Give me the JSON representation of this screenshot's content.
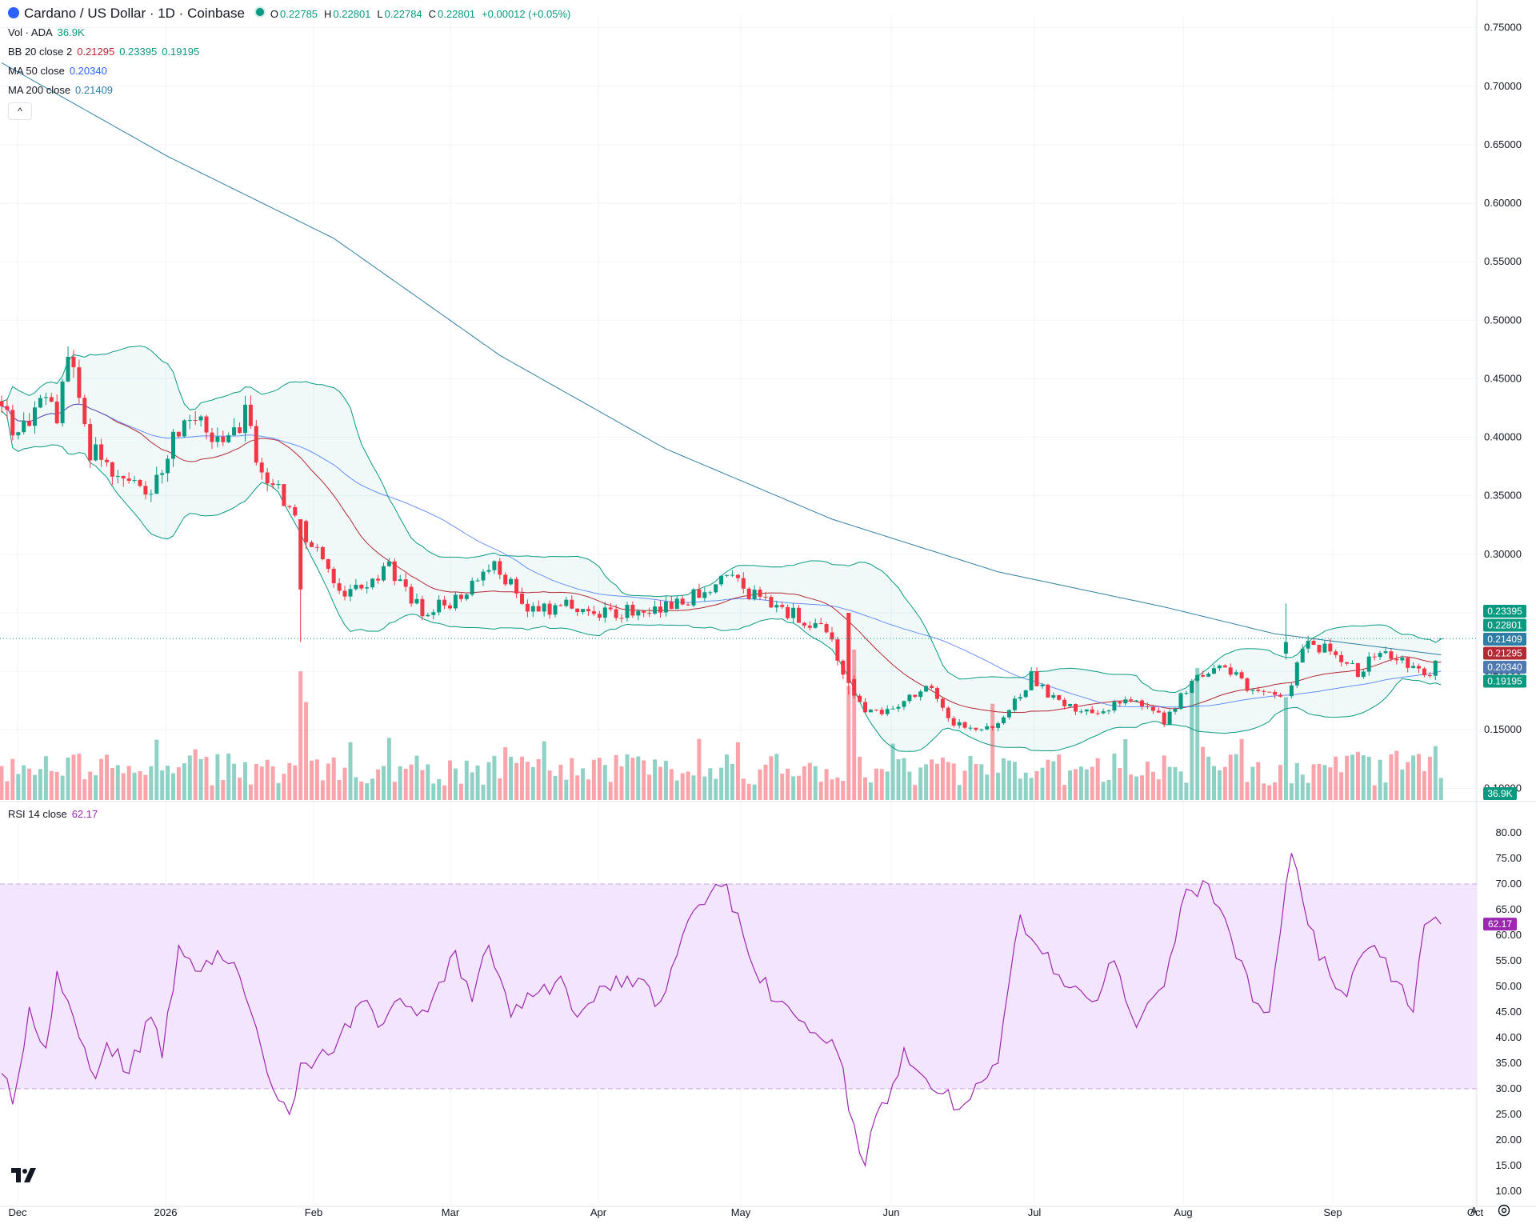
{
  "header": {
    "title": "Cardano / US Dollar · 1D · Coinbase",
    "ohlc": [
      {
        "label": "O",
        "value": "0.22785"
      },
      {
        "label": "H",
        "value": "0.22801"
      },
      {
        "label": "L",
        "value": "0.22784"
      },
      {
        "label": "C",
        "value": "0.22801"
      }
    ],
    "change": "+0.00012 (+0.05%)"
  },
  "indicators": {
    "vol": {
      "label": "Vol · ADA",
      "value": "36.9K"
    },
    "bb": {
      "label": "BB 20 close 2",
      "values": [
        "0.21295",
        "0.23395",
        "0.19195"
      ]
    },
    "ma50": {
      "label": "MA 50 close",
      "value": "0.20340"
    },
    "ma200": {
      "label": "MA 200 close",
      "value": "0.21409"
    },
    "rsi": {
      "label": "RSI 14 close",
      "value": "62.17"
    }
  },
  "controls": {
    "collapse": "^",
    "auto": "A"
  },
  "colors": {
    "up": "#089981",
    "down": "#f23645",
    "bb_basis": "#b22833",
    "bb_band": "#089981",
    "ma50": "#2962ff",
    "ma200": "#2f7ea6",
    "rsi": "#9c27b0",
    "rsi_band": "#f3e5fd"
  },
  "chart_data": [
    {
      "type": "candlestick",
      "title": "Cardano / US Dollar · 1D · Coinbase",
      "x_labels": [
        "Dec",
        "2026",
        "Feb",
        "Mar",
        "Apr",
        "May",
        "Jun",
        "Jul",
        "Aug",
        "Sep",
        "Oct"
      ],
      "y_ticks": [
        "0.75000",
        "0.70000",
        "0.65000",
        "0.60000",
        "0.55000",
        "0.50000",
        "0.45000",
        "0.40000",
        "0.35000",
        "0.30000",
        "0.25000",
        "0.20000",
        "0.15000",
        "0.10000"
      ],
      "ylim": [
        0.09,
        0.76
      ],
      "close_anchors": [
        [
          0,
          0.42
        ],
        [
          3,
          0.4
        ],
        [
          7,
          0.44
        ],
        [
          10,
          0.41
        ],
        [
          12,
          0.47
        ],
        [
          16,
          0.39
        ],
        [
          22,
          0.36
        ],
        [
          27,
          0.35
        ],
        [
          31,
          0.4
        ],
        [
          36,
          0.42
        ],
        [
          40,
          0.39
        ],
        [
          44,
          0.42
        ],
        [
          47,
          0.37
        ],
        [
          52,
          0.34
        ],
        [
          57,
          0.3
        ],
        [
          62,
          0.26
        ],
        [
          67,
          0.28
        ],
        [
          70,
          0.29
        ],
        [
          76,
          0.25
        ],
        [
          82,
          0.26
        ],
        [
          89,
          0.295
        ],
        [
          95,
          0.25
        ],
        [
          102,
          0.255
        ],
        [
          110,
          0.25
        ],
        [
          118,
          0.255
        ],
        [
          124,
          0.26
        ],
        [
          131,
          0.285
        ],
        [
          137,
          0.26
        ],
        [
          143,
          0.25
        ],
        [
          149,
          0.235
        ],
        [
          152,
          0.2
        ],
        [
          156,
          0.165
        ],
        [
          162,
          0.17
        ],
        [
          167,
          0.19
        ],
        [
          171,
          0.16
        ],
        [
          176,
          0.148
        ],
        [
          181,
          0.158
        ],
        [
          186,
          0.196
        ],
        [
          192,
          0.168
        ],
        [
          199,
          0.168
        ],
        [
          205,
          0.177
        ],
        [
          210,
          0.158
        ],
        [
          216,
          0.196
        ],
        [
          220,
          0.21
        ],
        [
          226,
          0.18
        ],
        [
          232,
          0.178
        ],
        [
          236,
          0.228
        ],
        [
          240,
          0.215
        ],
        [
          245,
          0.2
        ],
        [
          249,
          0.216
        ],
        [
          254,
          0.205
        ],
        [
          258,
          0.2
        ],
        [
          260,
          0.228
        ]
      ],
      "special_candles": [
        {
          "i": 54,
          "open": 0.33,
          "high": 0.33,
          "low": 0.225,
          "close": 0.27
        },
        {
          "i": 153,
          "open": 0.25,
          "high": 0.25,
          "low": 0.18,
          "close": 0.19
        },
        {
          "i": 232,
          "open": 0.215,
          "high": 0.258,
          "low": 0.21,
          "close": 0.225
        },
        {
          "i": 260,
          "open": 0.22785,
          "high": 0.22801,
          "low": 0.22784,
          "close": 0.22801
        }
      ],
      "last": {
        "close": "0.22801",
        "bb_upper": "0.23395",
        "ma200": "0.21409",
        "bb_basis": "0.21295",
        "ma50": "0.20340",
        "bb_lower": "0.19195",
        "volume": "36.9K"
      }
    },
    {
      "type": "line",
      "title": "RSI 14 close",
      "y_ticks": [
        "80.00",
        "75.00",
        "70.00",
        "65.00",
        "60.00",
        "55.00",
        "50.00",
        "45.00",
        "40.00",
        "35.00",
        "30.00",
        "25.00",
        "20.00",
        "15.00",
        "10.00"
      ],
      "ylim": [
        7.5,
        82.5
      ],
      "band": [
        30,
        70
      ],
      "anchors": [
        [
          0,
          33
        ],
        [
          2,
          27
        ],
        [
          5,
          46
        ],
        [
          8,
          38
        ],
        [
          10,
          53
        ],
        [
          14,
          40
        ],
        [
          17,
          32
        ],
        [
          19,
          39
        ],
        [
          23,
          33
        ],
        [
          27,
          44
        ],
        [
          29,
          36
        ],
        [
          32,
          58
        ],
        [
          35,
          53
        ],
        [
          39,
          57
        ],
        [
          43,
          52
        ],
        [
          46,
          42
        ],
        [
          49,
          30
        ],
        [
          52,
          25
        ],
        [
          54,
          35
        ],
        [
          57,
          36
        ],
        [
          61,
          40
        ],
        [
          65,
          47
        ],
        [
          68,
          42
        ],
        [
          71,
          47
        ],
        [
          77,
          45
        ],
        [
          82,
          57
        ],
        [
          85,
          47
        ],
        [
          88,
          58
        ],
        [
          92,
          44
        ],
        [
          96,
          48
        ],
        [
          101,
          52
        ],
        [
          104,
          44
        ],
        [
          108,
          50
        ],
        [
          113,
          52
        ],
        [
          119,
          47
        ],
        [
          123,
          60
        ],
        [
          127,
          66
        ],
        [
          131,
          70
        ],
        [
          135,
          56
        ],
        [
          140,
          47
        ],
        [
          146,
          41
        ],
        [
          151,
          37
        ],
        [
          154,
          23
        ],
        [
          156,
          15
        ],
        [
          158,
          25
        ],
        [
          161,
          31
        ],
        [
          163,
          38
        ],
        [
          166,
          33
        ],
        [
          170,
          29
        ],
        [
          173,
          26
        ],
        [
          176,
          31
        ],
        [
          180,
          35
        ],
        [
          184,
          64
        ],
        [
          187,
          58
        ],
        [
          192,
          50
        ],
        [
          197,
          47
        ],
        [
          201,
          55
        ],
        [
          205,
          42
        ],
        [
          210,
          50
        ],
        [
          214,
          69
        ],
        [
          218,
          70
        ],
        [
          222,
          60
        ],
        [
          226,
          47
        ],
        [
          229,
          45
        ],
        [
          233,
          76
        ],
        [
          236,
          62
        ],
        [
          240,
          52
        ],
        [
          243,
          48
        ],
        [
          245,
          55
        ],
        [
          248,
          58
        ],
        [
          252,
          51
        ],
        [
          255,
          45
        ],
        [
          257,
          62
        ],
        [
          260,
          62.17
        ]
      ],
      "last": "62.17"
    }
  ]
}
